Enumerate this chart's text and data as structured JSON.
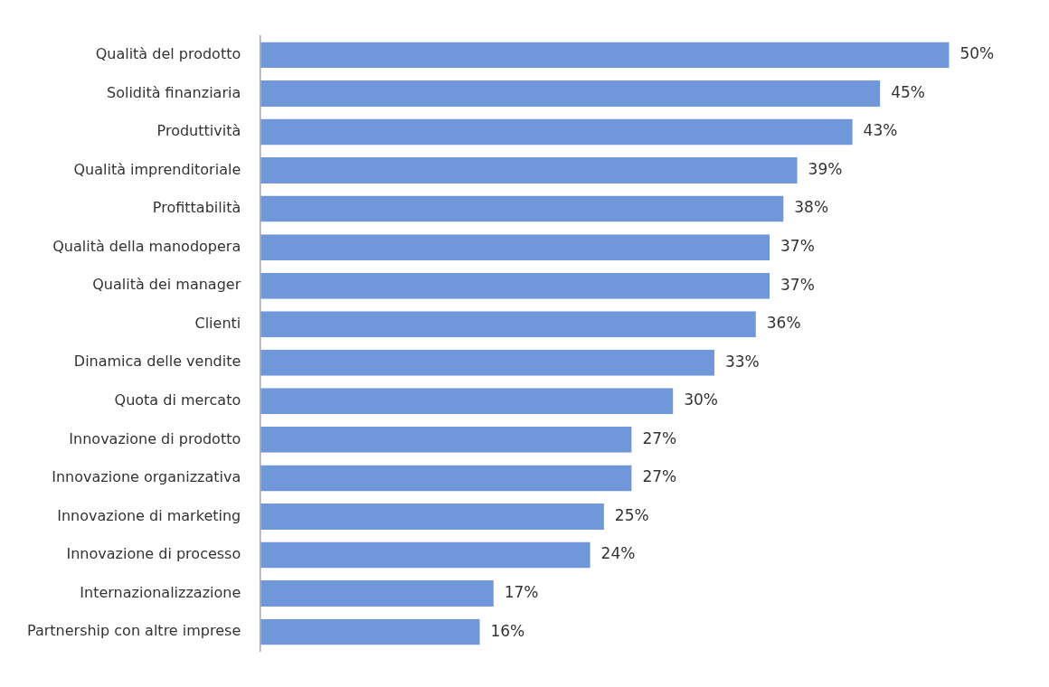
{
  "chart_data": {
    "type": "bar",
    "orientation": "horizontal",
    "categories": [
      "Qualità del prodotto",
      "Solidità finanziaria",
      "Produttività",
      "Qualità imprenditoriale",
      "Profittabilità",
      "Qualità della manodopera",
      "Qualità dei manager",
      "Clienti",
      "Dinamica delle vendite",
      "Quota di mercato",
      "Innovazione di prodotto",
      "Innovazione organizzativa",
      "Innovazione di marketing",
      "Innovazione di processo",
      "Internazionalizzazione",
      "Partnership con altre imprese"
    ],
    "values": [
      50,
      45,
      43,
      39,
      38,
      37,
      37,
      36,
      33,
      30,
      27,
      27,
      25,
      24,
      17,
      16
    ],
    "value_labels": [
      "50%",
      "45%",
      "43%",
      "39%",
      "38%",
      "37%",
      "37%",
      "36%",
      "33%",
      "30%",
      "27%",
      "27%",
      "25%",
      "24%",
      "17%",
      "16%"
    ],
    "color": "#7097d9",
    "legend": false
  }
}
